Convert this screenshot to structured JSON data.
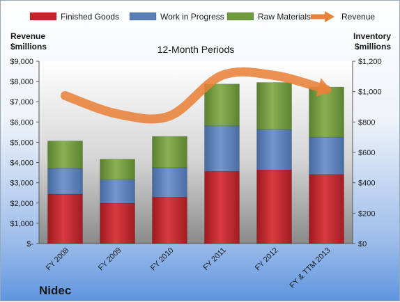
{
  "legend": [
    {
      "name": "Finished Goods",
      "kind": "bar"
    },
    {
      "name": "Work in Progress",
      "kind": "bar"
    },
    {
      "name": "Raw Materials",
      "kind": "bar"
    },
    {
      "name": "Revenue",
      "kind": "arrow"
    }
  ],
  "left_axis_title": [
    "Revenue",
    "$millions"
  ],
  "right_axis_title": [
    "Inventory",
    "$millions"
  ],
  "company": "Nidec",
  "colors": {
    "finished_goods": "#c0262b",
    "work_in_progress": "#5a7fb5",
    "raw_materials": "#6f9a3e",
    "revenue": "#e8823a"
  },
  "chart_data": {
    "type": "bar",
    "stacked": true,
    "title": "12-Month Periods",
    "categories": [
      "FY 2008",
      "FY 2009",
      "FY 2010",
      "FY 2011",
      "FY 2012",
      "FY & TTM 2013"
    ],
    "series": [
      {
        "name": "Finished Goods",
        "axis": "right",
        "values": [
          325,
          265,
          305,
          475,
          485,
          455
        ]
      },
      {
        "name": "Work in Progress",
        "axis": "right",
        "values": [
          170,
          155,
          195,
          300,
          265,
          245
        ]
      },
      {
        "name": "Raw Materials",
        "axis": "right",
        "values": [
          180,
          135,
          205,
          275,
          310,
          330
        ]
      },
      {
        "name": "Revenue",
        "axis": "left",
        "type": "line",
        "values": [
          7300,
          6400,
          6300,
          8300,
          8300,
          7600
        ]
      }
    ],
    "left_axis": {
      "min": 0,
      "max": 9000,
      "step": 1000,
      "tick_labels": [
        "$-",
        "$1,000",
        "$2,000",
        "$3,000",
        "$4,000",
        "$5,000",
        "$6,000",
        "$7,000",
        "$8,000",
        "$9,000"
      ]
    },
    "right_axis": {
      "min": 0,
      "max": 1200,
      "step": 200,
      "tick_labels": [
        "$0",
        "$200",
        "$400",
        "$600",
        "$800",
        "$1,000",
        "$1,200"
      ]
    },
    "grid": false,
    "legend_position": "top"
  }
}
